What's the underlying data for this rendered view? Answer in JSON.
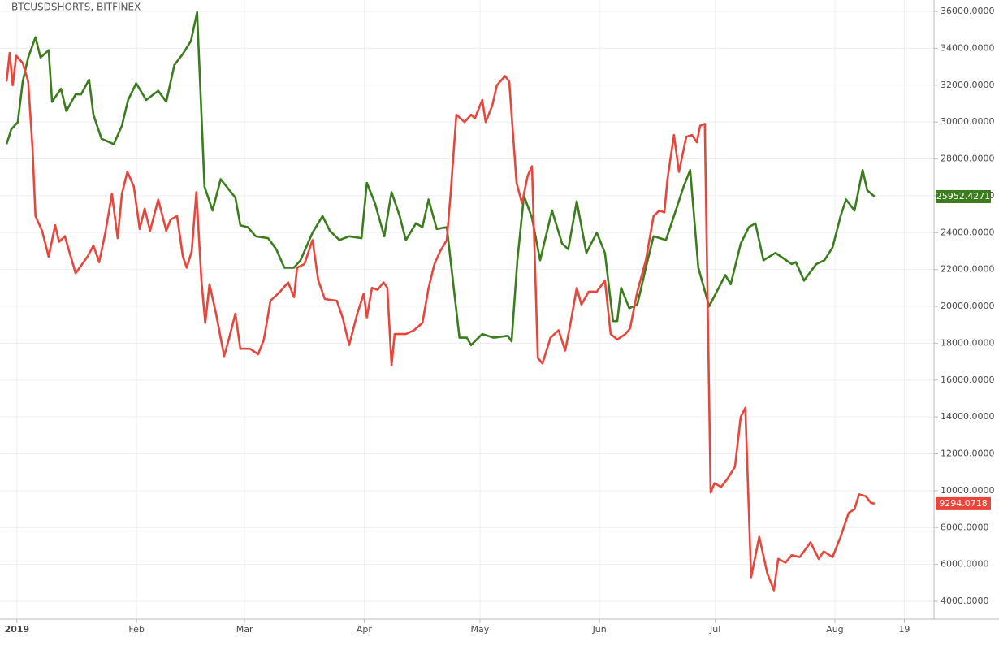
{
  "chart_data": {
    "type": "line",
    "title": "BTCUSDSHORTS, BITFINEX",
    "xlim": [
      -4.4,
      237.7
    ],
    "ylim": [
      3030,
      36620
    ],
    "xticks": [
      {
        "value": 0,
        "label": "2019"
      },
      {
        "value": 31,
        "label": "Feb"
      },
      {
        "value": 59,
        "label": "Mar"
      },
      {
        "value": 90,
        "label": "Apr"
      },
      {
        "value": 120,
        "label": "May"
      },
      {
        "value": 151,
        "label": "Jun"
      },
      {
        "value": 181,
        "label": "Jul"
      },
      {
        "value": 212,
        "label": "Aug"
      },
      {
        "value": 230,
        "label": "19"
      }
    ],
    "yticks": [
      {
        "value": 4000,
        "label": "4000.0000"
      },
      {
        "value": 6000,
        "label": "6000.0000"
      },
      {
        "value": 8000,
        "label": "8000.0000"
      },
      {
        "value": 10000,
        "label": "10000.0000"
      },
      {
        "value": 12000,
        "label": "12000.0000"
      },
      {
        "value": 14000,
        "label": "14000.0000"
      },
      {
        "value": 16000,
        "label": "16000.0000"
      },
      {
        "value": 18000,
        "label": "18000.0000"
      },
      {
        "value": 20000,
        "label": "20000.0000"
      },
      {
        "value": 22000,
        "label": "22000.0000"
      },
      {
        "value": 24000,
        "label": "24000.0000"
      },
      {
        "value": 26000,
        "label": "26000.0000"
      },
      {
        "value": 28000,
        "label": "28000.0000"
      },
      {
        "value": 30000,
        "label": "30000.0000"
      },
      {
        "value": 32000,
        "label": "32000.0000"
      },
      {
        "value": 34000,
        "label": "34000.0000"
      },
      {
        "value": 36000,
        "label": "36000.0000"
      }
    ],
    "grid": true,
    "series": [
      {
        "color": "#3b7d1c",
        "x": [
          -2.7,
          -1.5,
          0.2,
          1.5,
          2.9,
          4.8,
          6.1,
          8.2,
          9.1,
          11.4,
          12.8,
          15.2,
          16.6,
          18.7,
          19.8,
          21.9,
          25.1,
          27.2,
          28.8,
          30.9,
          33.5,
          36.6,
          38.7,
          40.8,
          43,
          45.1,
          46.7,
          48.6,
          50.7,
          52.8,
          56.6,
          57.9,
          59.8,
          61.9,
          65.1,
          67.2,
          69.3,
          71.8,
          73.5,
          76.6,
          79.2,
          81.1,
          83.6,
          86.1,
          89.3,
          90.7,
          92.8,
          95.2,
          97.1,
          99.2,
          100.8,
          103.4,
          105.1,
          106.7,
          108.8,
          111.4,
          114.7,
          116.6,
          117.7,
          120.6,
          123.6,
          127.2,
          128.2,
          129.7,
          131.4,
          133.5,
          135.6,
          138.7,
          141.3,
          142.9,
          145.1,
          147.6,
          150.3,
          152.4,
          154.5,
          155.6,
          156.6,
          158.7,
          160.8,
          163,
          165,
          168.2,
          170.3,
          172.8,
          174.5,
          176.6,
          179.4,
          181.9,
          183.6,
          185,
          187.6,
          189.7,
          191.4,
          193.5,
          196.6,
          198.7,
          200.8,
          201.9,
          204,
          207.2,
          209.3,
          211.4,
          213.5,
          214.9,
          217.1,
          219.2,
          220.4,
          222.3
        ],
        "values": [
          28800,
          29600,
          30000,
          32200,
          33500,
          34600,
          33500,
          33900,
          31100,
          31800,
          30600,
          31500,
          31500,
          32300,
          30400,
          29100,
          28800,
          29800,
          31200,
          32100,
          31200,
          31700,
          31100,
          33100,
          33700,
          34400,
          35950,
          26500,
          25200,
          26900,
          25900,
          24400,
          24300,
          23800,
          23700,
          23100,
          22100,
          22100,
          22500,
          24000,
          24900,
          24100,
          23600,
          23800,
          23700,
          26700,
          25600,
          23800,
          26200,
          24900,
          23600,
          24500,
          24300,
          25800,
          24200,
          24300,
          18300,
          18300,
          17900,
          18500,
          18300,
          18400,
          18100,
          22500,
          26000,
          24800,
          22500,
          25200,
          23400,
          23100,
          25700,
          22900,
          24000,
          22900,
          19200,
          19200,
          21000,
          19900,
          20100,
          22100,
          23800,
          23600,
          24900,
          26500,
          27400,
          22100,
          20000,
          21000,
          21700,
          21200,
          23400,
          24300,
          24500,
          22500,
          22900,
          22600,
          22300,
          22400,
          21400,
          22300,
          22500,
          23200,
          24900,
          25800,
          25200,
          27400,
          26300,
          25952.4271
        ]
      },
      {
        "color": "#e8453c",
        "x": [
          -2.7,
          -1.9,
          -1.1,
          -0.2,
          1.5,
          2.9,
          4,
          4.8,
          6.5,
          8.2,
          9.9,
          10.9,
          12.4,
          15.2,
          18.3,
          19.8,
          21.3,
          22.9,
          24.6,
          26.1,
          27.2,
          28.6,
          30.3,
          31.8,
          33.1,
          34.5,
          36.6,
          38.7,
          39.8,
          41.5,
          43,
          44,
          45.3,
          46.5,
          47.8,
          48.8,
          49.9,
          51.6,
          53.7,
          55,
          56.6,
          57.9,
          60.4,
          62.5,
          64,
          65.7,
          68.2,
          70.3,
          71.8,
          72.6,
          74.5,
          76.6,
          78.1,
          79.8,
          82.9,
          84.4,
          86.1,
          88.2,
          89.9,
          90.7,
          92,
          93.5,
          95,
          96,
          97.1,
          97.9,
          100.8,
          102.9,
          105.1,
          106.7,
          108.2,
          109.7,
          111.4,
          112.4,
          113.9,
          116,
          117.7,
          118.7,
          120.6,
          121.5,
          123.2,
          124.4,
          126.5,
          127.6,
          129.5,
          130.9,
          132.4,
          133.5,
          135,
          136.2,
          138.3,
          140.4,
          142.1,
          143.4,
          145.1,
          146.3,
          148.2,
          150.3,
          152.4,
          153.9,
          155.6,
          157.7,
          158.9,
          160.8,
          163,
          165,
          166.5,
          167.8,
          168.6,
          170.3,
          171.6,
          173.5,
          175,
          176.2,
          177.1,
          178.3,
          179.8,
          180.8,
          182.5,
          184,
          186.1,
          187.6,
          188.8,
          190.3,
          192.4,
          194.5,
          196.2,
          197.3,
          199.2,
          200.8,
          202.9,
          205.7,
          207.8,
          209.1,
          211.4,
          213.5,
          215.6,
          217.1,
          218.3,
          220,
          221.3,
          222.3
        ],
        "values": [
          32200,
          33750,
          32000,
          33600,
          33200,
          32200,
          28700,
          24900,
          24100,
          22700,
          24400,
          23500,
          23800,
          21800,
          22700,
          23300,
          22400,
          24000,
          26100,
          23700,
          26100,
          27300,
          26500,
          24200,
          25300,
          24100,
          25800,
          24100,
          24700,
          24900,
          22700,
          22100,
          23000,
          26200,
          21400,
          19100,
          21200,
          19600,
          17300,
          18300,
          19600,
          17700,
          17700,
          17400,
          18200,
          20300,
          20800,
          21300,
          20500,
          22100,
          22300,
          23600,
          21400,
          20400,
          20300,
          19400,
          17900,
          19600,
          20700,
          19400,
          21000,
          20900,
          21300,
          21000,
          16800,
          18500,
          18500,
          18700,
          19100,
          21000,
          22300,
          23000,
          23600,
          26100,
          30400,
          30000,
          30400,
          30200,
          31200,
          30000,
          30900,
          32000,
          32500,
          32200,
          26700,
          25600,
          27100,
          27600,
          17200,
          16900,
          18300,
          18700,
          17600,
          19000,
          21000,
          20100,
          20800,
          20800,
          21400,
          18500,
          18200,
          18500,
          18800,
          20800,
          22500,
          24900,
          25200,
          25100,
          26900,
          29300,
          27300,
          29200,
          29300,
          28900,
          29800,
          29900,
          9900,
          10400,
          10200,
          10600,
          11300,
          14000,
          14500,
          5300,
          7500,
          5500,
          4600,
          6300,
          6100,
          6500,
          6400,
          7200,
          6300,
          6700,
          6400,
          7500,
          8800,
          9000,
          9800,
          9700,
          9350,
          9294.0718
        ]
      }
    ]
  }
}
